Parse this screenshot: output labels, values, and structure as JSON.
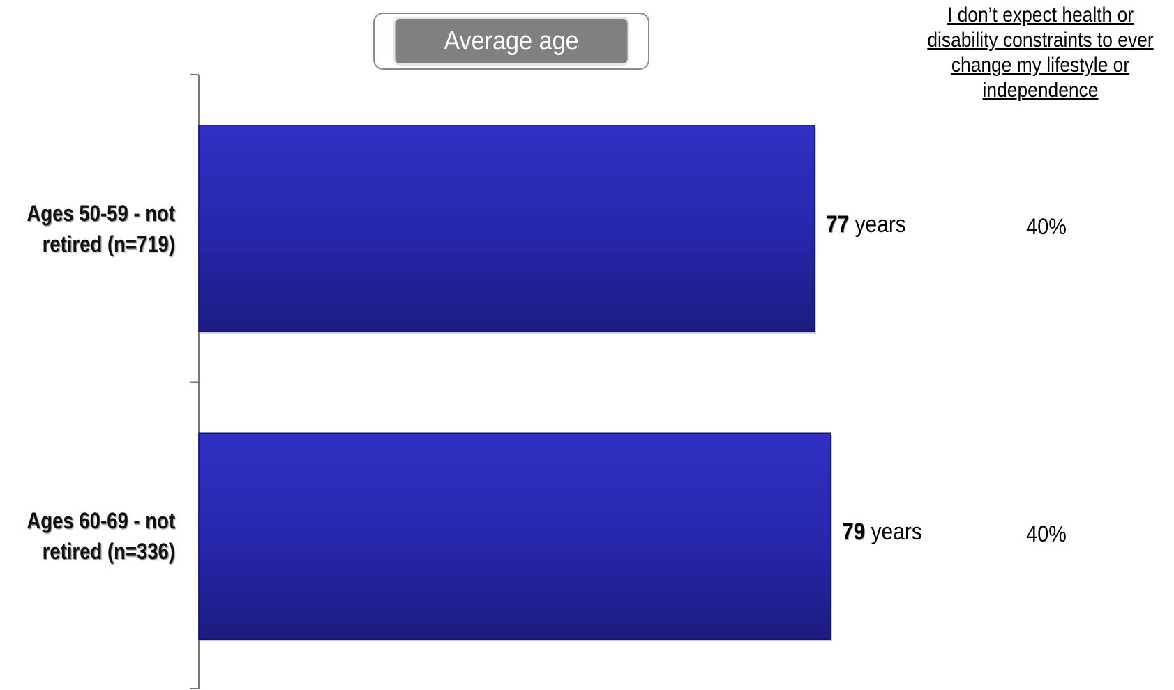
{
  "chart_data": {
    "type": "bar",
    "orientation": "horizontal",
    "title": "Average age",
    "categories": [
      "Ages 50-59 - not retired (n=719)",
      "Ages 60-69 - not retired (n=336)"
    ],
    "values": [
      77,
      79
    ],
    "value_unit": "years",
    "xlim": [
      0,
      85
    ],
    "grid": false,
    "bar_color": "#2a2ab8",
    "side_column": {
      "header": "I don’t expect health or disability constraints to ever change my lifestyle or independence",
      "values": [
        "40%",
        "40%"
      ]
    }
  },
  "colors": {
    "bar_top": "#3030c4",
    "bar_mid": "#2626aa",
    "bar_bottom": "#1c1c80",
    "title_badge_bg": "#808080",
    "axis": "#777777"
  }
}
